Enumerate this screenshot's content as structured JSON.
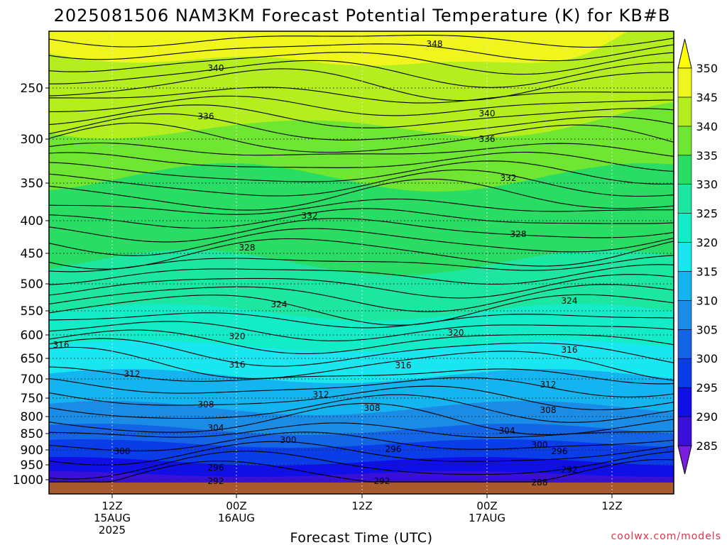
{
  "title": "2025081506 NAM3KM Forecast Potential Temperature (K) for KB#B",
  "xlabel": "Forecast Time (UTC)",
  "credit": "coolwx.com/models",
  "chart_data": {
    "type": "contour",
    "variable": "Potential Temperature",
    "units": "K",
    "y_axis": {
      "quantity": "pressure (hPa)",
      "inverted": true,
      "ticks": [
        250,
        300,
        350,
        400,
        450,
        500,
        550,
        600,
        650,
        700,
        750,
        800,
        850,
        900,
        950,
        1000
      ],
      "grid_lines_at": [
        250,
        300,
        350,
        400,
        450,
        500,
        550,
        600,
        650,
        700,
        750,
        800,
        850,
        900,
        950,
        1000
      ]
    },
    "x_axis": {
      "tick_labels": [
        {
          "line1": "12Z",
          "line2": "15AUG",
          "line3": "2025"
        },
        {
          "line1": "00Z",
          "line2": "16AUG",
          "line3": ""
        },
        {
          "line1": "12Z",
          "line2": "",
          "line3": ""
        },
        {
          "line1": "00Z",
          "line2": "17AUG",
          "line3": ""
        },
        {
          "line1": "12Z",
          "line2": "",
          "line3": ""
        }
      ],
      "grid": true
    },
    "colorbar": {
      "levels": [
        285,
        290,
        295,
        300,
        305,
        310,
        315,
        320,
        325,
        330,
        335,
        340,
        345,
        350
      ],
      "colors": [
        "#7a1fe0",
        "#3a0fd8",
        "#1010e6",
        "#0a3ce8",
        "#1464e6",
        "#1a8ce6",
        "#14b4f0",
        "#1ae6f0",
        "#14ecc8",
        "#1ce6a0",
        "#28dc64",
        "#6ee632",
        "#b4ee1e",
        "#f0f51e",
        "#ffff00"
      ],
      "triangle_ends": true
    },
    "ground_color": "#a65a2e",
    "contour_labels": [
      {
        "value": "348"
      },
      {
        "value": "340"
      },
      {
        "value": "336"
      },
      {
        "value": "340"
      },
      {
        "value": "336"
      },
      {
        "value": "332"
      },
      {
        "value": "332"
      },
      {
        "value": "328"
      },
      {
        "value": "328"
      },
      {
        "value": "324"
      },
      {
        "value": "324"
      },
      {
        "value": "320"
      },
      {
        "value": "320"
      },
      {
        "value": "316"
      },
      {
        "value": "316"
      },
      {
        "value": "316"
      },
      {
        "value": "316"
      },
      {
        "value": "312"
      },
      {
        "value": "312"
      },
      {
        "value": "312"
      },
      {
        "value": "308"
      },
      {
        "value": "308"
      },
      {
        "value": "308"
      },
      {
        "value": "304"
      },
      {
        "value": "304"
      },
      {
        "value": "300"
      },
      {
        "value": "300"
      },
      {
        "value": "300"
      },
      {
        "value": "296"
      },
      {
        "value": "296"
      },
      {
        "value": "296"
      },
      {
        "value": "292"
      },
      {
        "value": "292"
      },
      {
        "value": "292"
      },
      {
        "value": "288"
      }
    ]
  }
}
